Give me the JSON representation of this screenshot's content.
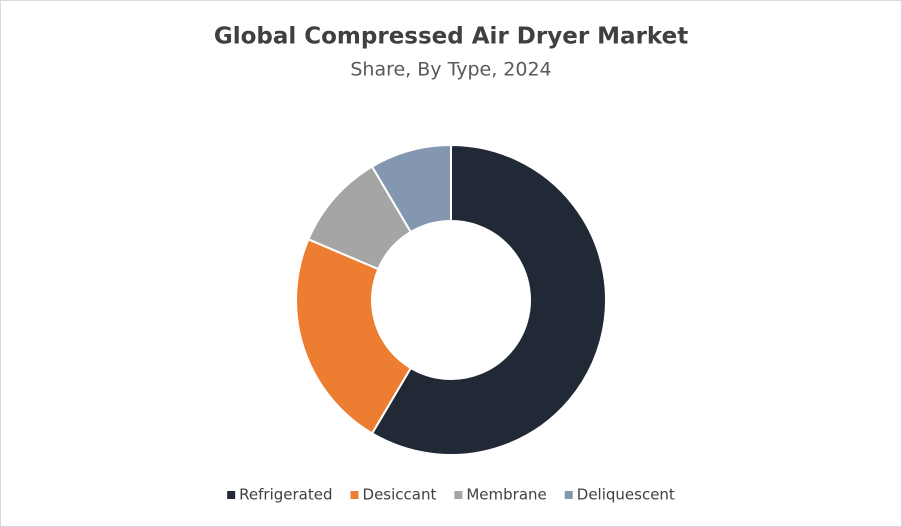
{
  "chart_data": {
    "type": "donut",
    "title": "Global Compressed Air Dryer Market",
    "subtitle": "Share, By Type, 2024",
    "categories": [
      "Refrigerated",
      "Desiccant",
      "Membrane",
      "Deliquescent"
    ],
    "values": [
      58.5,
      22.9,
      10.1,
      8.5
    ],
    "colors": [
      "#222936",
      "#ed7d31",
      "#a5a5a5",
      "#8497b0"
    ],
    "legend": "bottom"
  }
}
